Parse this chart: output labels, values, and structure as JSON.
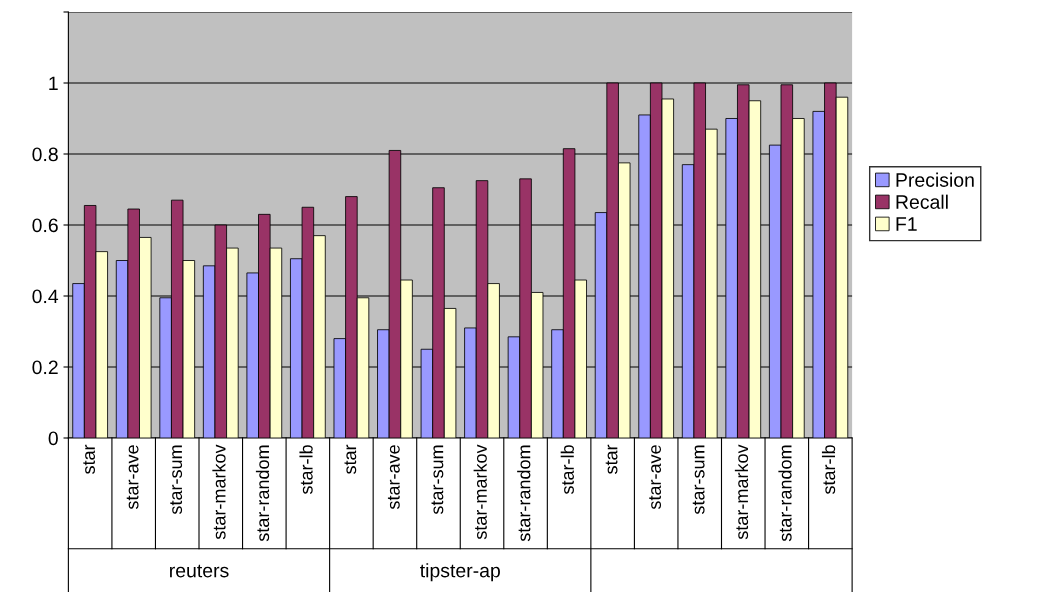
{
  "chart_data": {
    "type": "bar",
    "categories": [
      "star",
      "star-ave",
      "star-sum",
      "star-markov",
      "star-random",
      "star-lb",
      "star",
      "star-ave",
      "star-sum",
      "star-markov",
      "star-random",
      "star-lb",
      "star",
      "star-ave",
      "star-sum",
      "star-markov",
      "star-random",
      "star-lb"
    ],
    "series": [
      {
        "name": "Precision",
        "color": "#9999ff",
        "values": [
          0.435,
          0.5,
          0.395,
          0.485,
          0.465,
          0.505,
          0.28,
          0.305,
          0.25,
          0.31,
          0.285,
          0.305,
          0.635,
          0.91,
          0.77,
          0.9,
          0.825,
          0.92
        ]
      },
      {
        "name": "Recall",
        "color": "#993366",
        "values": [
          0.655,
          0.645,
          0.67,
          0.6,
          0.63,
          0.65,
          0.68,
          0.81,
          0.705,
          0.725,
          0.73,
          0.815,
          1.0,
          1.0,
          1.0,
          0.995,
          0.995,
          1.0
        ]
      },
      {
        "name": "F1",
        "color": "#ffffcc",
        "values": [
          0.525,
          0.565,
          0.5,
          0.535,
          0.535,
          0.57,
          0.395,
          0.445,
          0.365,
          0.435,
          0.41,
          0.445,
          0.775,
          0.955,
          0.87,
          0.95,
          0.9,
          0.96
        ]
      }
    ],
    "annotations": [
      "reuters",
      "tipster-ap"
    ],
    "ylim": [
      0,
      1.2
    ],
    "yticks": [
      0,
      0.2,
      0.4,
      0.6,
      0.8,
      1,
      {
        "value": 1.2,
        "label": null
      }
    ],
    "grid": "y",
    "legend": "right"
  }
}
